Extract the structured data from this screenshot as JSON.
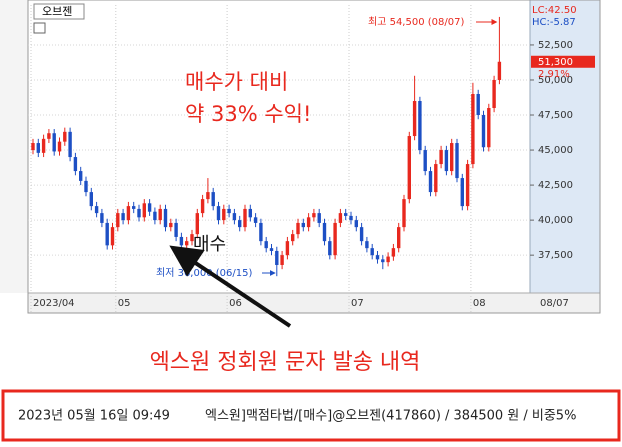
{
  "toolbar": {
    "stock": "오브젠"
  },
  "chart_data": {
    "type": "candlestick",
    "categories": [
      "2023/04",
      null,
      null,
      null,
      null,
      null,
      null,
      null,
      null,
      null,
      null,
      null,
      null,
      null,
      null,
      null,
      "05",
      null,
      null,
      null,
      null,
      null,
      null,
      null,
      null,
      null,
      null,
      null,
      null,
      null,
      null,
      null,
      null,
      null,
      null,
      null,
      null,
      "06",
      null,
      null,
      null,
      null,
      null,
      null,
      null,
      null,
      null,
      null,
      null,
      null,
      null,
      null,
      null,
      null,
      null,
      null,
      null,
      null,
      null,
      null,
      "07",
      null,
      null,
      null,
      null,
      null,
      null,
      null,
      null,
      null,
      null,
      null,
      null,
      null,
      null,
      null,
      null,
      null,
      null,
      null,
      null,
      null,
      null,
      "08",
      null,
      null,
      null,
      null,
      null
    ],
    "open": [
      45000,
      45500,
      44800,
      45800,
      46200,
      44900,
      45600,
      46300,
      44500,
      43500,
      42800,
      42000,
      41000,
      40500,
      39800,
      38200,
      39500,
      40500,
      40000,
      41000,
      40800,
      40200,
      41200,
      40600,
      40000,
      40800,
      39500,
      39800,
      38800,
      38200,
      38500,
      39000,
      40500,
      41500,
      42000,
      41000,
      40000,
      40800,
      40500,
      40000,
      39500,
      40800,
      40200,
      39800,
      38500,
      38000,
      37800,
      36800,
      37500,
      38500,
      39000,
      39800,
      39500,
      40200,
      40500,
      39800,
      38500,
      37500,
      39800,
      40500,
      40300,
      40000,
      39500,
      38500,
      38000,
      37500,
      37200,
      37000,
      37400,
      38000,
      39500,
      41500,
      46000,
      48500,
      45000,
      43500,
      42000,
      44000,
      45000,
      43500,
      45500,
      43000,
      41000,
      44000,
      49000,
      47500,
      45200,
      48000,
      50000
    ],
    "high": [
      45800,
      45800,
      46100,
      46500,
      46500,
      45900,
      46600,
      46600,
      44800,
      43800,
      43100,
      42300,
      41300,
      40800,
      40100,
      39800,
      40800,
      40800,
      41300,
      41300,
      41100,
      41500,
      41500,
      40900,
      41100,
      41100,
      40100,
      40100,
      39100,
      38800,
      39300,
      40800,
      41800,
      43000,
      42300,
      41300,
      41100,
      41100,
      40800,
      40300,
      41100,
      41100,
      40500,
      40100,
      38800,
      38300,
      38100,
      37800,
      38800,
      39300,
      40100,
      40100,
      40500,
      40800,
      40800,
      40100,
      38800,
      40100,
      40800,
      40800,
      40600,
      40300,
      39800,
      38800,
      38300,
      37800,
      37500,
      37700,
      38300,
      39800,
      41800,
      46300,
      50300,
      48800,
      45300,
      43800,
      44300,
      45300,
      45300,
      45800,
      45800,
      43300,
      44300,
      49800,
      49300,
      47800,
      48300,
      50300,
      54500
    ],
    "low": [
      44700,
      44500,
      44500,
      45500,
      44600,
      44600,
      45300,
      44200,
      43200,
      42500,
      41700,
      40700,
      40200,
      39500,
      37900,
      37900,
      39200,
      39700,
      39700,
      40500,
      39900,
      39900,
      40300,
      39700,
      39700,
      39200,
      39200,
      38500,
      37900,
      37900,
      38200,
      38700,
      40200,
      41200,
      40700,
      39700,
      39700,
      40200,
      39700,
      39200,
      39200,
      39900,
      39500,
      38200,
      37700,
      37500,
      36000,
      36500,
      37200,
      38200,
      38700,
      39200,
      39200,
      39900,
      39500,
      38200,
      37200,
      37200,
      39500,
      40000,
      39700,
      39200,
      38200,
      37700,
      37200,
      36900,
      36500,
      36700,
      37100,
      37700,
      39200,
      41200,
      45700,
      44700,
      43200,
      41700,
      41700,
      43700,
      43200,
      43200,
      42700,
      40700,
      40700,
      43700,
      47200,
      44900,
      44900,
      47700,
      49700
    ],
    "close": [
      45500,
      44800,
      45800,
      46200,
      44900,
      45600,
      46300,
      44500,
      43500,
      42800,
      42000,
      41000,
      40500,
      39800,
      38200,
      39500,
      40500,
      40000,
      41000,
      40800,
      40200,
      41200,
      40600,
      40000,
      40800,
      39500,
      39800,
      38800,
      38200,
      38500,
      39000,
      40500,
      41500,
      42000,
      41000,
      40000,
      40800,
      40500,
      40000,
      39500,
      40800,
      40200,
      39800,
      38500,
      38000,
      37800,
      36800,
      37500,
      38500,
      39000,
      39800,
      39500,
      40200,
      40500,
      39800,
      38500,
      37500,
      39800,
      40500,
      40300,
      40000,
      39500,
      38500,
      38000,
      37500,
      37200,
      37000,
      37400,
      38000,
      39500,
      41500,
      46000,
      48500,
      45000,
      43500,
      42000,
      44000,
      45000,
      43500,
      45500,
      43000,
      41000,
      44000,
      49000,
      47500,
      45200,
      48000,
      50000,
      51300
    ],
    "up_color": "#e8281e",
    "down_color": "#1d4fc4",
    "ylim": [
      34800,
      55350
    ],
    "yticks": [
      {
        "value": 37500,
        "label": "37,500"
      },
      {
        "value": 40000,
        "label": "40,000"
      },
      {
        "value": 42500,
        "label": "42,500"
      },
      {
        "value": 45000,
        "label": "45,000"
      },
      {
        "value": 47500,
        "label": "47,500"
      },
      {
        "value": 50000,
        "label": "50,000"
      },
      {
        "value": 52500,
        "label": "52,500"
      }
    ],
    "grid": true,
    "last_price": {
      "value": 51300,
      "label": "51,300"
    },
    "change_label": "2.91%",
    "lc_label": "LC:42.50",
    "hc_label": "HC:-5.87",
    "last_date_label": "08/07",
    "high_note": "최고 54,500 (08/07)",
    "low_note": "최저 36,000 (06/15)"
  },
  "annotations": {
    "profit_line1": "매수가 대비",
    "profit_line2": "약 33% 수익!",
    "buy": "매수",
    "headline": "엑스원 정회원 문자 발송 내역"
  },
  "message": {
    "time": "2023년 05월 16일 09:49",
    "text": "엑스원]맥점타법/[매수]@오브젠(417860) / 384500 원 / 비중5%"
  }
}
